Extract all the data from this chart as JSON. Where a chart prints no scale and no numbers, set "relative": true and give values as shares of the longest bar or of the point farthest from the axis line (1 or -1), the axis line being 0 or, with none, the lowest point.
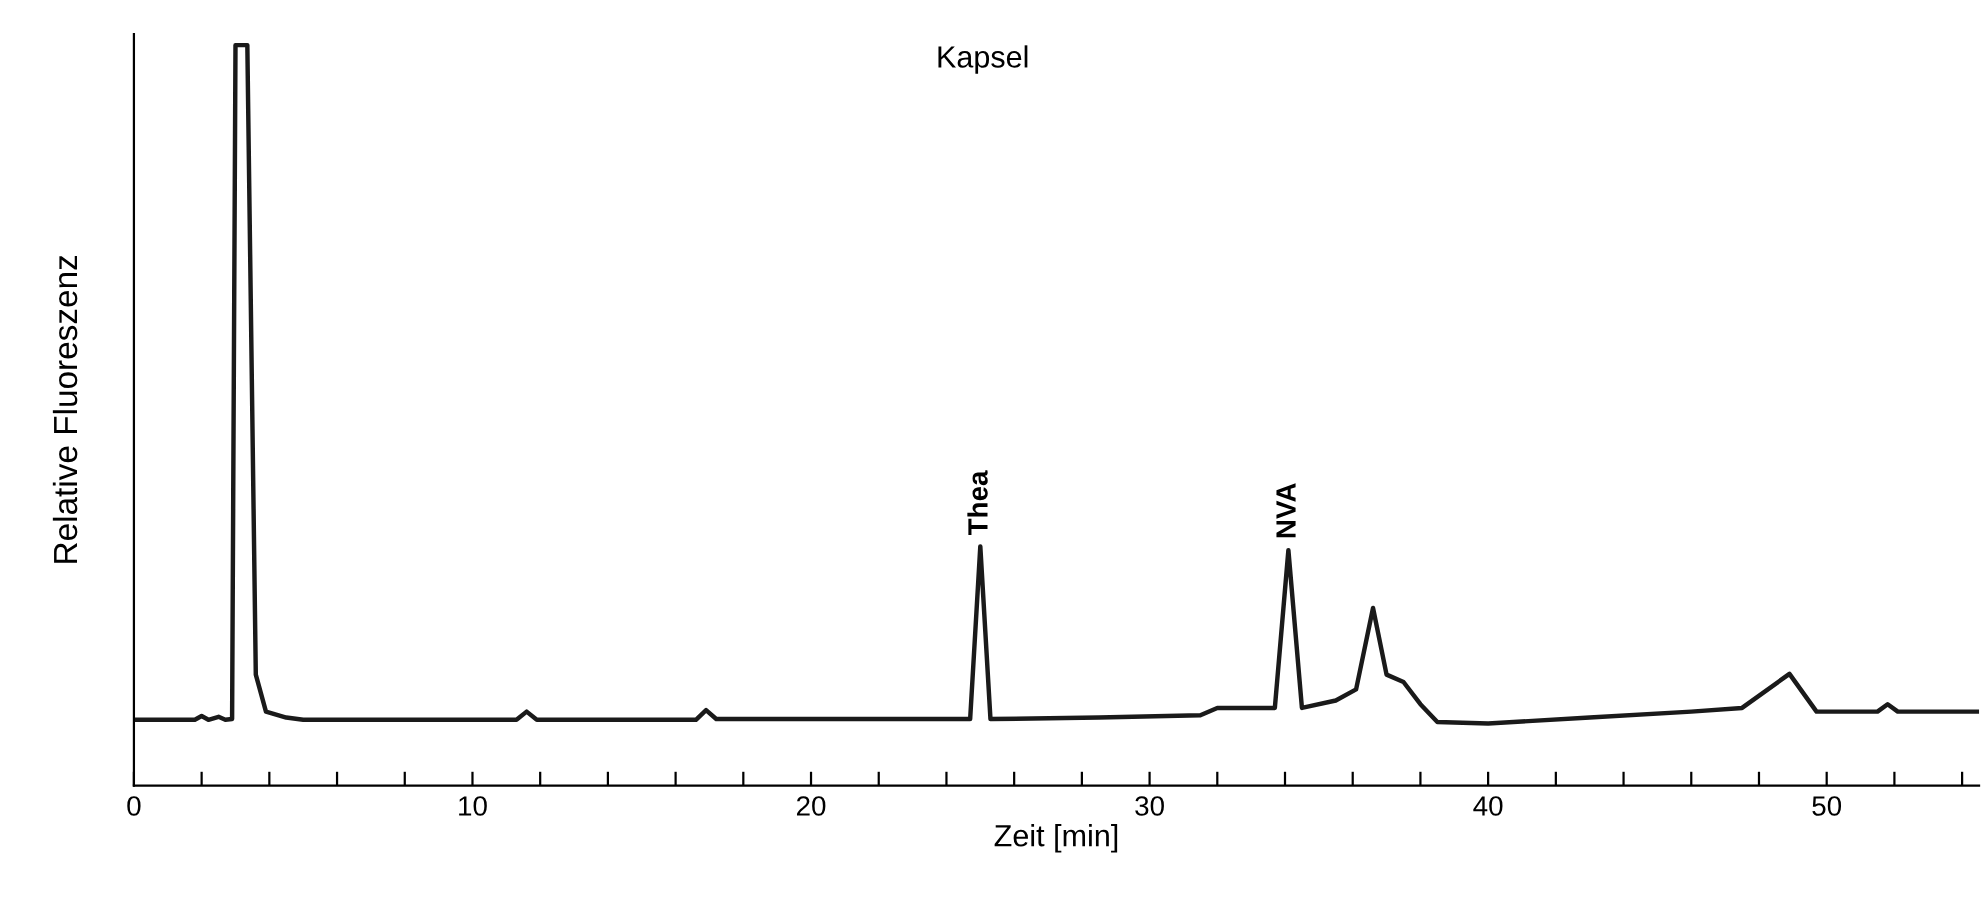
{
  "chart_data": {
    "type": "line",
    "relative": true,
    "title": "Kapsel",
    "xlabel": "Zeit [min]",
    "ylabel": "Relative Fluoreszenz",
    "x": [
      0,
      1.8,
      2.0,
      2.2,
      2.5,
      2.7,
      2.9,
      3.0,
      3.35,
      3.6,
      3.9,
      4.5,
      5,
      11.3,
      11.6,
      11.9,
      16.6,
      16.9,
      17.2,
      23.8,
      24.7,
      25.0,
      25.3,
      28.5,
      31.5,
      32,
      33.7,
      34.1,
      34.5,
      35.5,
      36.1,
      36.6,
      37.0,
      37.5,
      38.0,
      38.5,
      40,
      43,
      46,
      47.5,
      48.9,
      49.7,
      51.5,
      51.8,
      52.1,
      54.5
    ],
    "series": [
      {
        "color": "#1a1a1a",
        "values": [
          0.089,
          0.089,
          0.094,
          0.089,
          0.093,
          0.089,
          0.09,
          1.0,
          1.0,
          0.15,
          0.1,
          0.092,
          0.089,
          0.089,
          0.1,
          0.089,
          0.089,
          0.102,
          0.09,
          0.09,
          0.09,
          0.323,
          0.09,
          0.092,
          0.095,
          0.105,
          0.105,
          0.318,
          0.105,
          0.115,
          0.13,
          0.24,
          0.15,
          0.14,
          0.11,
          0.086,
          0.084,
          0.092,
          0.1,
          0.105,
          0.151,
          0.1,
          0.1,
          0.11,
          0.1,
          0.1
        ]
      }
    ],
    "annotations": [
      {
        "text": "Thea",
        "x": 25.0,
        "y": 0.323
      },
      {
        "text": "NVA",
        "x": 34.1,
        "y": 0.318
      }
    ],
    "xlim": [
      0,
      54.5
    ],
    "xticks": [
      0,
      {
        "value": 2,
        "label": null
      },
      {
        "value": 4,
        "label": null
      },
      {
        "value": 6,
        "label": null
      },
      {
        "value": 8,
        "label": null
      },
      10,
      {
        "value": 12,
        "label": null
      },
      {
        "value": 14,
        "label": null
      },
      {
        "value": 16,
        "label": null
      },
      {
        "value": 18,
        "label": null
      },
      20,
      {
        "value": 22,
        "label": null
      },
      {
        "value": 24,
        "label": null
      },
      {
        "value": 26,
        "label": null
      },
      {
        "value": 28,
        "label": null
      },
      30,
      {
        "value": 32,
        "label": null
      },
      {
        "value": 34,
        "label": null
      },
      {
        "value": 36,
        "label": null
      },
      {
        "value": 38,
        "label": null
      },
      40,
      {
        "value": 42,
        "label": null
      },
      {
        "value": 44,
        "label": null
      },
      {
        "value": 46,
        "label": null
      },
      {
        "value": 48,
        "label": null
      },
      50,
      {
        "value": 52,
        "label": null
      },
      {
        "value": 54,
        "label": null
      }
    ],
    "tick_labels": "x",
    "grid": false,
    "legend": false,
    "marker": "none",
    "line_style": "solid"
  }
}
